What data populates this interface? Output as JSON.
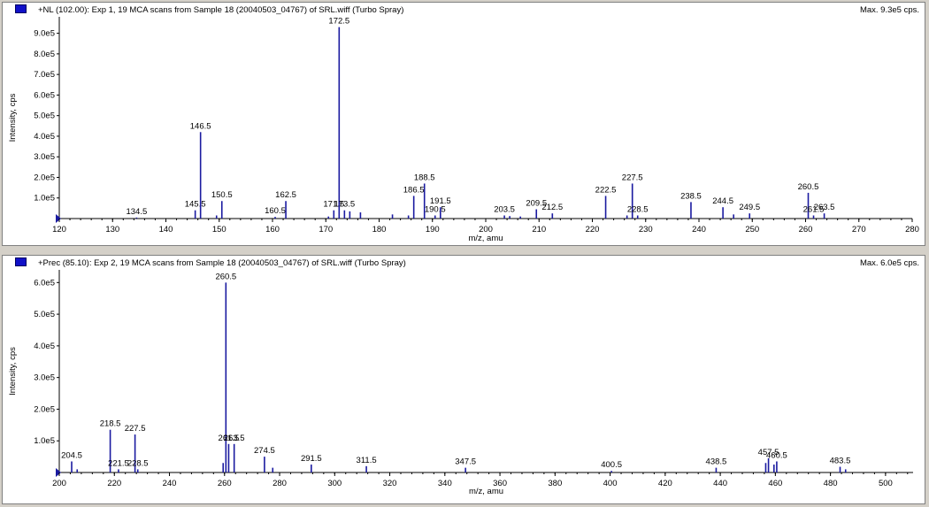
{
  "panels": [
    {
      "title": "+NL (102.00): Exp 1, 19 MCA scans from Sample 18 (20040503_04767) of SRL.wiff (Turbo Spray)",
      "max": "Max. 9.3e5 cps."
    },
    {
      "title": "+Prec (85.10): Exp 2, 19 MCA scans from Sample 18 (20040503_04767) of SRL.wiff (Turbo Spray)",
      "max": "Max. 6.0e5 cps."
    }
  ],
  "chart_data": [
    {
      "type": "bar",
      "title": "+NL (102.00): Exp 1, 19 MCA scans from Sample 18 (20040503_04767) of SRL.wiff (Turbo Spray)",
      "xlabel": "m/z, amu",
      "ylabel": "Intensity, cps",
      "xlim": [
        120,
        280
      ],
      "ylim": [
        0,
        980000
      ],
      "x_ticks": [
        120,
        130,
        140,
        150,
        160,
        170,
        180,
        190,
        200,
        210,
        220,
        230,
        240,
        250,
        260,
        270,
        280
      ],
      "y_ticks": [
        100000,
        200000,
        300000,
        400000,
        500000,
        600000,
        700000,
        800000,
        900000
      ],
      "y_tick_labels": [
        "1.0e5",
        "2.0e5",
        "3.0e5",
        "4.0e5",
        "5.0e5",
        "6.0e5",
        "7.0e5",
        "8.0e5",
        "9.0e5"
      ],
      "grid": false,
      "color": "#1a1aa0",
      "peaks": [
        {
          "x": 134.5,
          "y": 5000,
          "label": "134.5"
        },
        {
          "x": 145.5,
          "y": 40000,
          "label": "145.5"
        },
        {
          "x": 146.5,
          "y": 420000,
          "label": "146.5"
        },
        {
          "x": 149.5,
          "y": 15000
        },
        {
          "x": 150.5,
          "y": 85000,
          "label": "150.5"
        },
        {
          "x": 160.5,
          "y": 8000,
          "label": "160.5"
        },
        {
          "x": 162.5,
          "y": 85000,
          "label": "162.5"
        },
        {
          "x": 170.5,
          "y": 10000
        },
        {
          "x": 171.5,
          "y": 40000,
          "label": "171.5"
        },
        {
          "x": 172.5,
          "y": 930000,
          "label": "172.5"
        },
        {
          "x": 173.5,
          "y": 40000,
          "label": "173.5"
        },
        {
          "x": 174.5,
          "y": 35000
        },
        {
          "x": 176.5,
          "y": 30000
        },
        {
          "x": 182.5,
          "y": 20000
        },
        {
          "x": 185.5,
          "y": 15000
        },
        {
          "x": 186.5,
          "y": 110000,
          "label": "186.5"
        },
        {
          "x": 188.5,
          "y": 170000,
          "label": "188.5"
        },
        {
          "x": 190.5,
          "y": 15000,
          "label": "190.5"
        },
        {
          "x": 191.5,
          "y": 55000,
          "label": "191.5"
        },
        {
          "x": 203.5,
          "y": 15000,
          "label": "203.5"
        },
        {
          "x": 204.5,
          "y": 12000
        },
        {
          "x": 206.5,
          "y": 10000
        },
        {
          "x": 209.5,
          "y": 45000,
          "label": "209.5"
        },
        {
          "x": 212.5,
          "y": 25000,
          "label": "212.5"
        },
        {
          "x": 222.5,
          "y": 110000,
          "label": "222.5"
        },
        {
          "x": 226.5,
          "y": 15000
        },
        {
          "x": 227.5,
          "y": 170000,
          "label": "227.5"
        },
        {
          "x": 228.5,
          "y": 15000,
          "label": "228.5"
        },
        {
          "x": 238.5,
          "y": 80000,
          "label": "238.5"
        },
        {
          "x": 244.5,
          "y": 55000,
          "label": "244.5"
        },
        {
          "x": 246.5,
          "y": 20000
        },
        {
          "x": 249.5,
          "y": 25000,
          "label": "249.5"
        },
        {
          "x": 260.5,
          "y": 125000,
          "label": "260.5"
        },
        {
          "x": 261.5,
          "y": 15000,
          "label": "261.5"
        },
        {
          "x": 263.5,
          "y": 25000,
          "label": "263.5"
        }
      ]
    },
    {
      "type": "bar",
      "title": "+Prec (85.10): Exp 2, 19 MCA scans from Sample 18 (20040503_04767) of SRL.wiff (Turbo Spray)",
      "xlabel": "m/z, amu",
      "ylabel": "Intensity, cps",
      "xlim": [
        200,
        510
      ],
      "ylim": [
        0,
        640000
      ],
      "x_ticks": [
        200,
        220,
        240,
        260,
        280,
        300,
        320,
        340,
        360,
        380,
        400,
        420,
        440,
        460,
        480,
        500
      ],
      "y_ticks": [
        100000,
        200000,
        300000,
        400000,
        500000,
        600000
      ],
      "y_tick_labels": [
        "1.0e5",
        "2.0e5",
        "3.0e5",
        "4.0e5",
        "5.0e5",
        "6.0e5"
      ],
      "grid": false,
      "color": "#1a1aa0",
      "peaks": [
        {
          "x": 204.5,
          "y": 35000,
          "label": "204.5"
        },
        {
          "x": 206.5,
          "y": 10000
        },
        {
          "x": 218.5,
          "y": 135000,
          "label": "218.5"
        },
        {
          "x": 221.5,
          "y": 10000,
          "label": "221.5"
        },
        {
          "x": 227.5,
          "y": 120000,
          "label": "227.5"
        },
        {
          "x": 228.5,
          "y": 10000,
          "label": "228.5"
        },
        {
          "x": 259.5,
          "y": 30000
        },
        {
          "x": 260.5,
          "y": 600000,
          "label": "260.5"
        },
        {
          "x": 261.5,
          "y": 90000,
          "label": "261.5"
        },
        {
          "x": 263.5,
          "y": 90000,
          "label": "263.5"
        },
        {
          "x": 274.5,
          "y": 50000,
          "label": "274.5"
        },
        {
          "x": 277.5,
          "y": 15000
        },
        {
          "x": 291.5,
          "y": 25000,
          "label": "291.5"
        },
        {
          "x": 311.5,
          "y": 20000,
          "label": "311.5"
        },
        {
          "x": 347.5,
          "y": 15000,
          "label": "347.5"
        },
        {
          "x": 400.5,
          "y": 5000,
          "label": "400.5"
        },
        {
          "x": 438.5,
          "y": 15000,
          "label": "438.5"
        },
        {
          "x": 456.5,
          "y": 30000
        },
        {
          "x": 457.5,
          "y": 45000,
          "label": "457.5"
        },
        {
          "x": 459.5,
          "y": 25000
        },
        {
          "x": 460.5,
          "y": 35000,
          "label": "460.5"
        },
        {
          "x": 483.5,
          "y": 18000,
          "label": "483.5"
        },
        {
          "x": 485.5,
          "y": 10000
        }
      ]
    }
  ]
}
